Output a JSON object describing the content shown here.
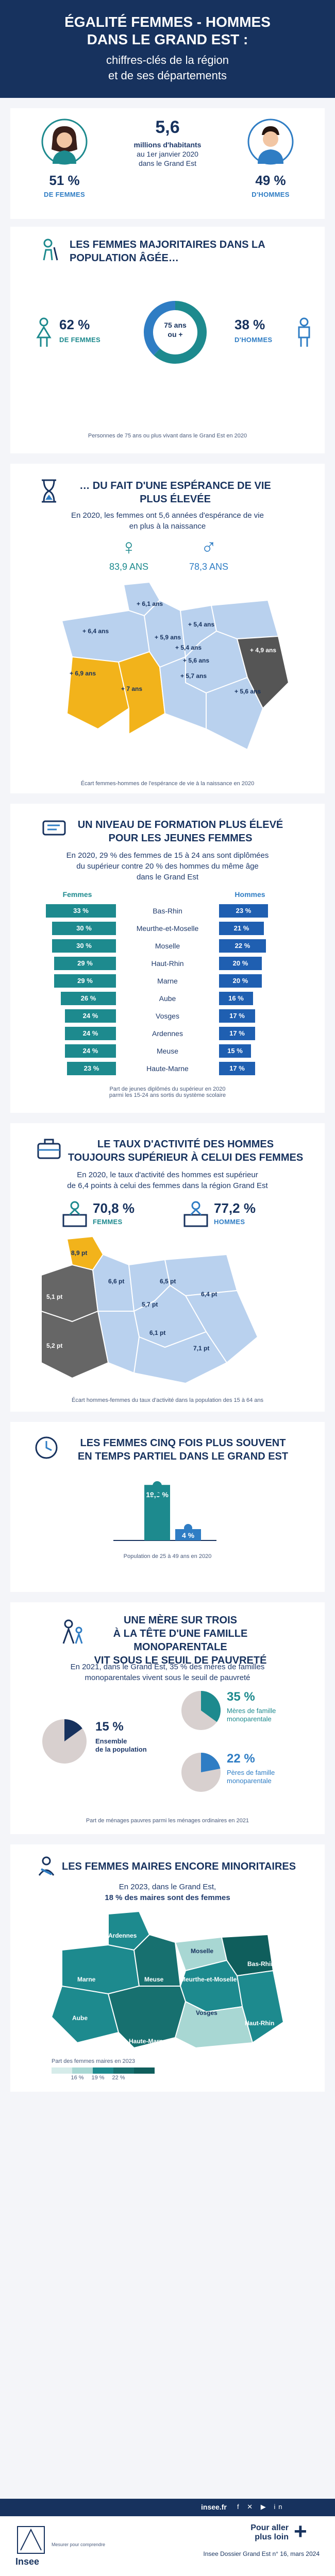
{
  "hero": {
    "title_line1": "ÉGALITÉ FEMMES - HOMMES",
    "title_line2": "DANS LE GRAND EST :",
    "subtitle_line1": "chiffres-clés de la région",
    "subtitle_line2": "et de ses départements"
  },
  "population": {
    "total": "5,6",
    "total_line1": "millions d'habitants",
    "total_line2": "au 1er janvier 2020",
    "total_line3": "dans le Grand Est",
    "women_pct": "51 %",
    "women_label": "DE FEMMES",
    "men_pct": "49 %",
    "men_label": "D'HOMMES"
  },
  "aging": {
    "title_line1": "LES FEMMES MAJORITAIRES DANS LA",
    "title_line2": "POPULATION ÂGÉE…",
    "women_pct": "62 %",
    "women_label": "DE FEMMES",
    "men_pct": "38 %",
    "men_label": "D'HOMMES",
    "center_line1": "75 ans",
    "center_line2": "ou +",
    "women_share": 0.62,
    "note": "Personnes de 75 ans ou plus vivant dans le Grand Est en 2020",
    "colors": {
      "women": "#1d8a8e",
      "men": "#2f7dc4"
    }
  },
  "life": {
    "title_line1": "… DU FAIT D'UNE ESPÉRANCE DE VIE",
    "title_line2": "PLUS ÉLEVÉE",
    "text_line1": "En 2020, les femmes ont 5,6 années d'espérance de vie",
    "text_line2": "en plus à la naissance",
    "women_age": "83,9 ANS",
    "men_age": "78,3 ANS",
    "map_labels": [
      "+ 6,1 ans",
      "+ 5,4 ans",
      "+ 6,4 ans",
      "+ 5,9 ans",
      "+ 5,4 ans",
      "+ 4,9 ans",
      "+ 5,6 ans",
      "+ 6,9 ans",
      "+ 5,7 ans",
      "+ 7 ans",
      "+ 5,6 ans"
    ],
    "note": "Écart femmes-hommes de l'espérance de vie à la naissance en 2020"
  },
  "education": {
    "title_line1": "UN NIVEAU DE FORMATION PLUS ÉLEVÉ",
    "title_line2": "POUR LES JEUNES FEMMES",
    "text_line1": "En 2020, 29 % des femmes de 15 à 24 ans sont diplômées",
    "text_line2": "du supérieur contre 20 % des hommes du même âge",
    "text_line3": "dans le Grand Est",
    "women_header": "Femmes",
    "men_header": "Hommes",
    "rows": [
      {
        "name": "Bas-Rhin",
        "women": "33 %",
        "men": "23 %",
        "w": 33,
        "m": 23
      },
      {
        "name": "Meurthe-et-Moselle",
        "women": "30 %",
        "men": "21 %",
        "w": 30,
        "m": 21
      },
      {
        "name": "Moselle",
        "women": "30 %",
        "men": "22 %",
        "w": 30,
        "m": 22
      },
      {
        "name": "Haut-Rhin",
        "women": "29 %",
        "men": "20 %",
        "w": 29,
        "m": 20
      },
      {
        "name": "Marne",
        "women": "29 %",
        "men": "20 %",
        "w": 29,
        "m": 20
      },
      {
        "name": "Aube",
        "women": "26 %",
        "men": "16 %",
        "w": 26,
        "m": 16
      },
      {
        "name": "Vosges",
        "women": "24 %",
        "men": "17 %",
        "w": 24,
        "m": 17
      },
      {
        "name": "Ardennes",
        "women": "24 %",
        "men": "17 %",
        "w": 24,
        "m": 17
      },
      {
        "name": "Meuse",
        "women": "24 %",
        "men": "15 %",
        "w": 24,
        "m": 15
      },
      {
        "name": "Haute-Marne",
        "women": "23 %",
        "men": "17 %",
        "w": 23,
        "m": 17
      }
    ],
    "note_line1": "Part de jeunes diplômés du supérieur en 2020",
    "note_line2": "parmi les 15-24 ans sortis du système scolaire"
  },
  "activity": {
    "title_line1": "LE TAUX D'ACTIVITÉ DES HOMMES",
    "title_line2": "TOUJOURS SUPÉRIEUR À CELUI DES FEMMES",
    "text_line1": "En 2020, le taux d'activité des hommes est supérieur",
    "text_line2": "de 6,4 points à celui des femmes dans la région Grand Est",
    "women_pct": "70,8 %",
    "women_label": "FEMMES",
    "men_pct": "77,2 %",
    "men_label": "HOMMES",
    "map_labels": [
      "8,9 pt",
      "5,1 pt",
      "6,6 pt",
      "6,5 pt",
      "6,4 pt",
      "5,7 pt",
      "5,2 pt",
      "6,1 pt",
      "7,1 pt"
    ],
    "note": "Écart hommes-femmes du taux d'activité dans la population des 15 à 64 ans"
  },
  "parttime": {
    "title_line1": "LES FEMMES CINQ FOIS PLUS SOUVENT",
    "title_line2": "EN TEMPS PARTIEL DANS LE GRAND EST",
    "women_value": "19,6 %",
    "men_value": "4 %",
    "women": 19.6,
    "men": 4,
    "note": "Population de 25 à 49 ans en 2020"
  },
  "single": {
    "title_line1": "UNE MÈRE SUR TROIS",
    "title_line2": "À LA TÊTE D'UNE FAMILLE MONOPARENTALE",
    "title_line3": "VIT SOUS LE SEUIL DE PAUVRETÉ",
    "text_line1": "En 2021, dans le Grand Est, 35 % des mères de familles",
    "text_line2": "monoparentales vivent sous le seuil de pauvreté",
    "all_pct": "15 %",
    "all_label_line1": "Ensemble",
    "all_label_line2": "de la population",
    "mothers_pct": "35 %",
    "mothers_label_line1": "Mères de famille",
    "mothers_label_line2": "monoparentale",
    "fathers_pct": "22 %",
    "fathers_label_line1": "Pères de famille",
    "fathers_label_line2": "monoparentale",
    "all": 15,
    "mothers": 35,
    "fathers": 22,
    "note": "Part de ménages pauvres parmi les ménages ordinaires en 2021"
  },
  "mayors": {
    "title": "LES FEMMES MAIRES ENCORE MINORITAIRES",
    "text_line1": "En 2023, dans le Grand Est,",
    "text_line2": "18 % des maires sont des femmes",
    "map_labels": [
      "Ardennes",
      "Marne",
      "Meuse",
      "Moselle",
      "Bas-Rhin",
      "Meurthe-et-Moselle",
      "Aube",
      "Vosges",
      "Haute-Marne",
      "Haut-Rhin"
    ],
    "legend_title": "Part des femmes maires en 2023",
    "legend_ticks": [
      "16 %",
      "19 %",
      "22 %"
    ]
  },
  "footer": {
    "site": "insee.fr",
    "cta_line1": "Pour aller",
    "cta_line2": "plus loin",
    "ref": "Insee Dossier Grand Est n° 16, mars 2024",
    "logo": "Insee",
    "tagline": "Mesurer pour comprendre"
  }
}
